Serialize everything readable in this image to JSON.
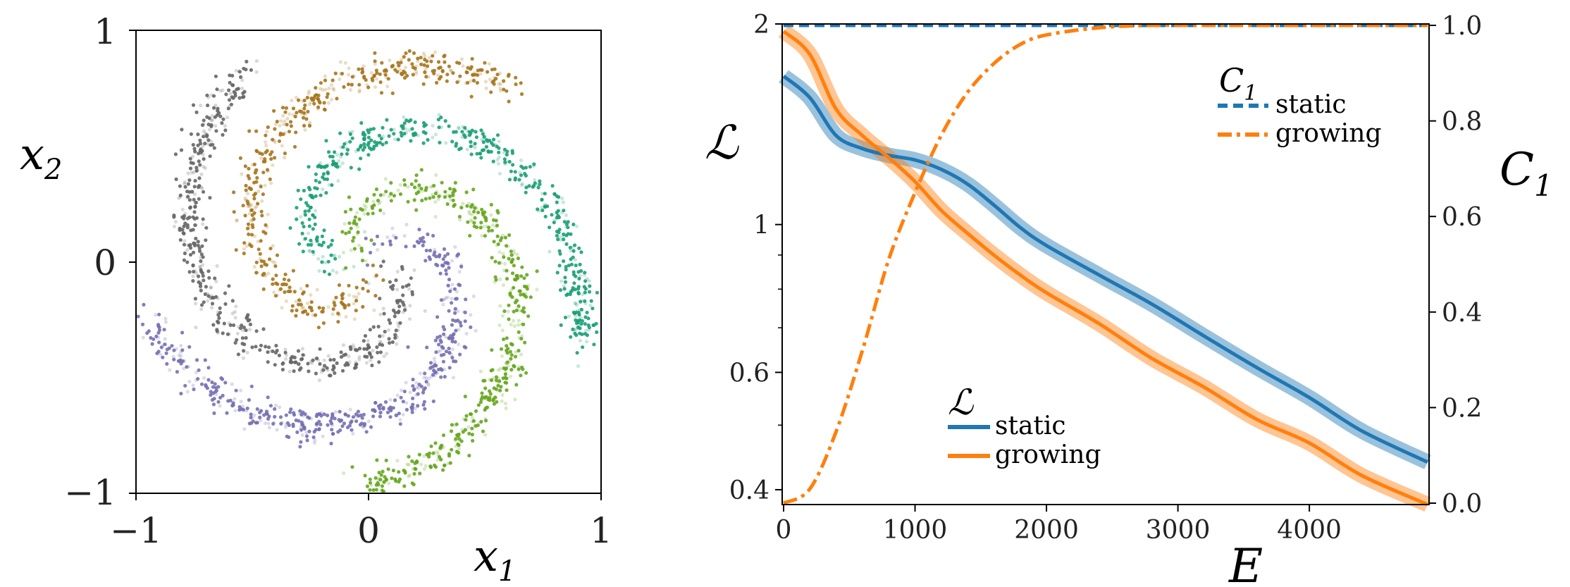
{
  "left_panel": {
    "xlabel": "x",
    "xlabel_sub": "1",
    "ylabel": "x",
    "ylabel_sub": "2",
    "xticks": [
      "−1",
      "0",
      "1"
    ],
    "yticks": [
      "1",
      "0",
      "−1"
    ]
  },
  "right_panel": {
    "ylabel_left": "ℒ",
    "ylabel_right": "C",
    "ylabel_right_sub": "1",
    "xlabel": "E",
    "xticks": [
      "0",
      "1000",
      "2000",
      "3000",
      "4000"
    ],
    "yticks_left": [
      "2",
      "1",
      "0.6",
      "0.4"
    ],
    "yticks_right": [
      "1.0",
      "0.8",
      "0.6",
      "0.4",
      "0.2",
      "0.0"
    ],
    "legend_c1": {
      "title": "C",
      "title_sub": "1",
      "items": [
        "static",
        "growing"
      ]
    },
    "legend_l": {
      "title": "ℒ",
      "items": [
        "static",
        "growing"
      ]
    }
  },
  "colors": {
    "static": "#1f77b4",
    "growing": "#ff7f0e",
    "spiral_arms": [
      "#66a61e",
      "#7570b3",
      "#666666",
      "#a6761d",
      "#1b9e77"
    ]
  },
  "chart_data": [
    {
      "type": "scatter",
      "description_arms": 5,
      "series": [],
      "xlim": [
        -1,
        1
      ],
      "ylim": [
        -1,
        1
      ]
    },
    {
      "type": "line",
      "x": [
        0,
        200,
        400,
        600,
        800,
        1000,
        1200,
        1400,
        1600,
        1800,
        2000,
        2400,
        2800,
        3200,
        3600,
        4000,
        4400,
        4900
      ],
      "series": [
        {
          "name": "static",
          "axis": "left",
          "values": [
            1.67,
            1.55,
            1.36,
            1.3,
            1.27,
            1.25,
            1.21,
            1.15,
            1.07,
            0.99,
            0.93,
            0.84,
            0.76,
            0.68,
            0.61,
            0.55,
            0.49,
            0.44
          ]
        },
        {
          "name": "growing",
          "axis": "left",
          "values": [
            1.95,
            1.8,
            1.49,
            1.36,
            1.26,
            1.16,
            1.05,
            0.97,
            0.9,
            0.84,
            0.79,
            0.71,
            0.63,
            0.57,
            0.51,
            0.47,
            0.42,
            0.38
          ]
        },
        {
          "name": "static",
          "axis": "right",
          "values": [
            1.0,
            1.0,
            1.0,
            1.0,
            1.0,
            1.0,
            1.0,
            1.0,
            1.0,
            1.0,
            1.0,
            1.0,
            1.0,
            1.0,
            1.0,
            1.0,
            1.0,
            1.0
          ]
        },
        {
          "name": "growing",
          "axis": "right",
          "values": [
            0.0,
            0.03,
            0.15,
            0.32,
            0.51,
            0.65,
            0.77,
            0.86,
            0.92,
            0.96,
            0.98,
            0.995,
            1.0,
            1.0,
            1.0,
            1.0,
            1.0,
            1.0
          ]
        }
      ],
      "xlim": [
        0,
        4900
      ],
      "ylim_left": [
        0.38,
        2
      ],
      "ylim_right": [
        0,
        1
      ],
      "yscale_left": "log"
    }
  ]
}
